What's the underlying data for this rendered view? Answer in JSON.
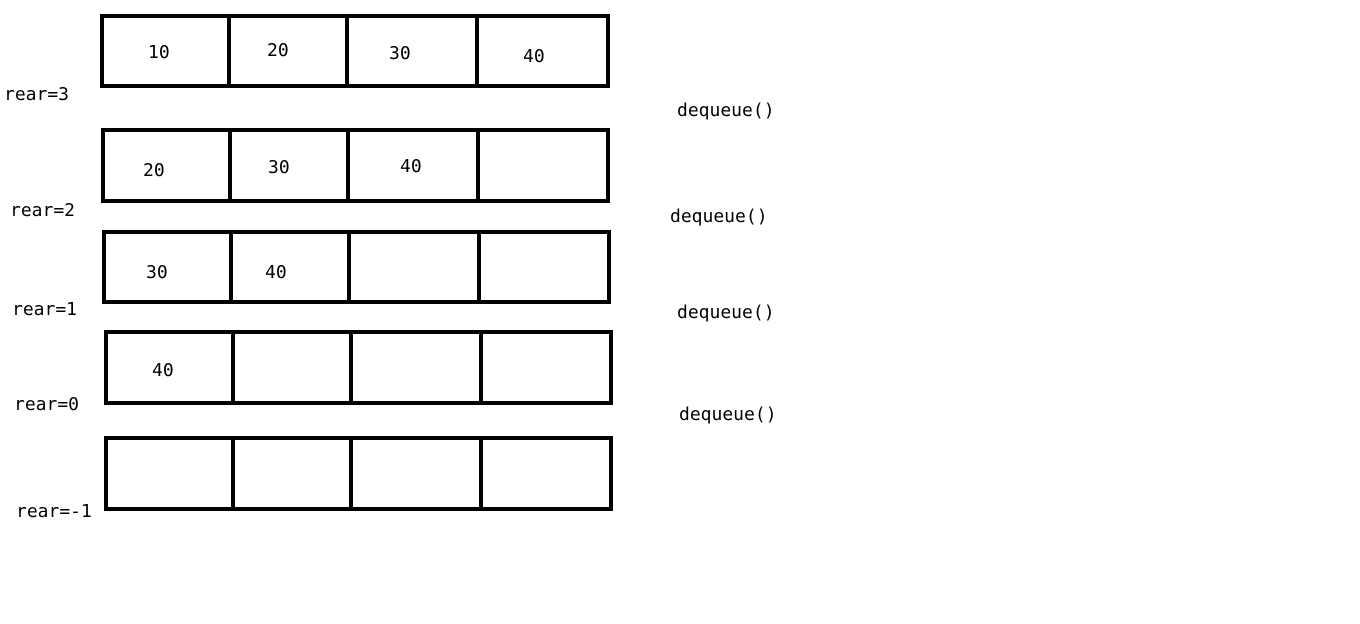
{
  "rows": [
    {
      "rear_label": "rear=3",
      "cells": [
        "10",
        "20",
        "30",
        "40"
      ]
    },
    {
      "rear_label": "rear=2",
      "cells": [
        "20",
        "30",
        "40",
        ""
      ]
    },
    {
      "rear_label": "rear=1",
      "cells": [
        "30",
        "40",
        "",
        ""
      ]
    },
    {
      "rear_label": "rear=0",
      "cells": [
        "40",
        "",
        "",
        ""
      ]
    },
    {
      "rear_label": "rear=-1",
      "cells": [
        "",
        "",
        "",
        ""
      ]
    }
  ],
  "operations": [
    "dequeue()",
    "dequeue()",
    "dequeue()",
    "dequeue()"
  ]
}
